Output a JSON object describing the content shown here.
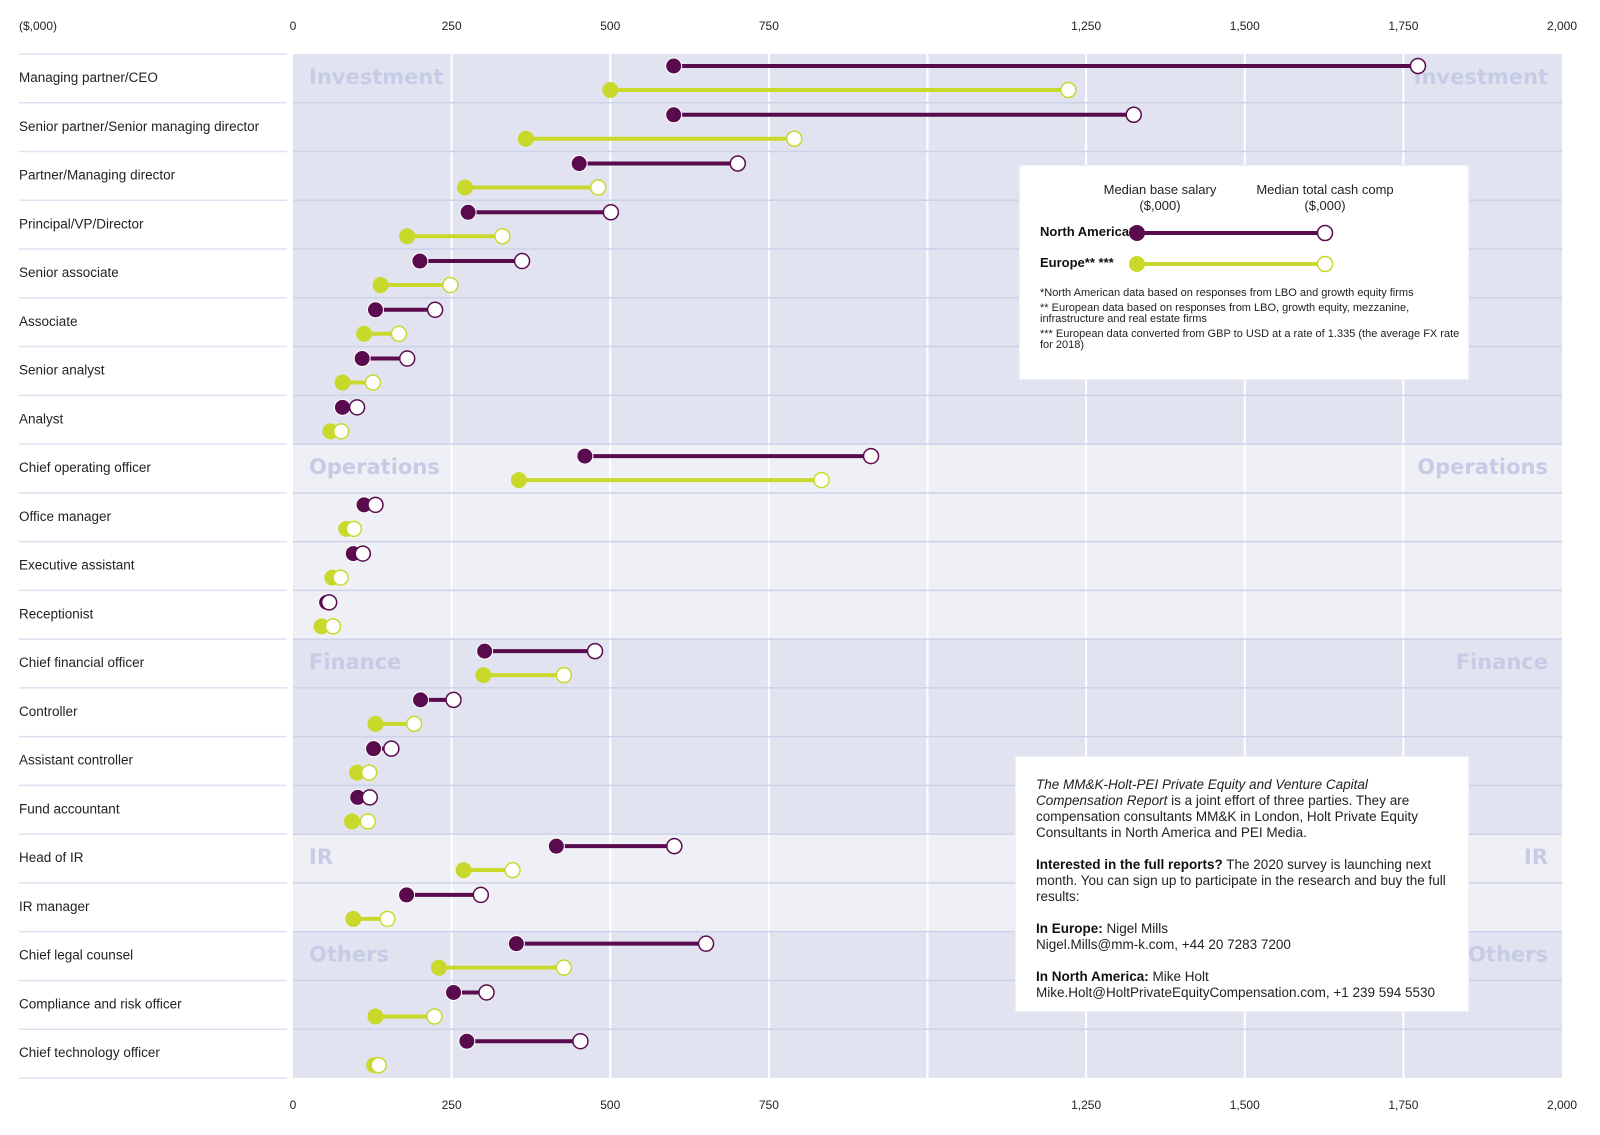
{
  "chart_data": {
    "type": "dumbbell",
    "unit_label": "($,000)",
    "xlim": [
      0,
      2000
    ],
    "x_ticks": [
      {
        "value": 0,
        "label": "0"
      },
      {
        "value": 250,
        "label": "250"
      },
      {
        "value": 500,
        "label": "500"
      },
      {
        "value": 750,
        "label": "750"
      },
      {
        "value": 1000,
        "label": ""
      },
      {
        "value": 1250,
        "label": "1,250"
      },
      {
        "value": 1500,
        "label": "1,500"
      },
      {
        "value": 1750,
        "label": "1,750"
      },
      {
        "value": 2000,
        "label": "2,000"
      }
    ],
    "grid": true,
    "series_names": [
      "North America*",
      "Europe** ***"
    ],
    "colors": {
      "north_america": "#5a0b4d",
      "europe": "#c8d92b",
      "band_dark": "#e1e4f0",
      "band_light": "#eff0f6",
      "row_line": "#cdd2e8",
      "section_label": "#c6cce6"
    },
    "sections": [
      {
        "name": "Investment",
        "rows": [
          {
            "role": "Managing partner/CEO",
            "na_base": 600,
            "na_total": 1773,
            "eu_base": 500,
            "eu_total": 1222
          },
          {
            "role": "Senior partner/Senior managing director",
            "na_base": 600,
            "na_total": 1325,
            "eu_base": 367,
            "eu_total": 790
          },
          {
            "role": "Partner/Managing director",
            "na_base": 451,
            "na_total": 701,
            "eu_base": 271,
            "eu_total": 481
          },
          {
            "role": "Principal/VP/Director",
            "na_base": 276,
            "na_total": 501,
            "eu_base": 180,
            "eu_total": 330
          },
          {
            "role": "Senior associate",
            "na_base": 200,
            "na_total": 361,
            "eu_base": 138,
            "eu_total": 248
          },
          {
            "role": "Associate",
            "na_base": 130,
            "na_total": 224,
            "eu_base": 112,
            "eu_total": 167
          },
          {
            "role": "Senior analyst",
            "na_base": 109,
            "na_total": 180,
            "eu_base": 78,
            "eu_total": 126
          },
          {
            "role": "Analyst",
            "na_base": 78,
            "na_total": 101,
            "eu_base": 59,
            "eu_total": 76
          }
        ]
      },
      {
        "name": "Operations",
        "rows": [
          {
            "role": "Chief operating officer",
            "na_base": 460,
            "na_total": 911,
            "eu_base": 356,
            "eu_total": 833
          },
          {
            "role": "Office manager",
            "na_base": 112,
            "na_total": 130,
            "eu_base": 84,
            "eu_total": 96
          },
          {
            "role": "Executive assistant",
            "na_base": 95,
            "na_total": 110,
            "eu_base": 62,
            "eu_total": 75
          },
          {
            "role": "Receptionist",
            "na_base": 53,
            "na_total": 57,
            "eu_base": 45,
            "eu_total": 63
          }
        ]
      },
      {
        "name": "Finance",
        "rows": [
          {
            "role": "Chief financial officer",
            "na_base": 302,
            "na_total": 476,
            "eu_base": 300,
            "eu_total": 427
          },
          {
            "role": "Controller",
            "na_base": 201,
            "na_total": 253,
            "eu_base": 130,
            "eu_total": 191
          },
          {
            "role": "Assistant controller",
            "na_base": 127,
            "na_total": 155,
            "eu_base": 101,
            "eu_total": 120
          },
          {
            "role": "Fund accountant",
            "na_base": 102,
            "na_total": 121,
            "eu_base": 93,
            "eu_total": 118
          }
        ]
      },
      {
        "name": "IR",
        "rows": [
          {
            "role": "Head of IR",
            "na_base": 415,
            "na_total": 601,
            "eu_base": 269,
            "eu_total": 346
          },
          {
            "role": "IR manager",
            "na_base": 179,
            "na_total": 296,
            "eu_base": 95,
            "eu_total": 149
          }
        ]
      },
      {
        "name": "Others",
        "rows": [
          {
            "role": "Chief legal counsel",
            "na_base": 352,
            "na_total": 651,
            "eu_base": 230,
            "eu_total": 427
          },
          {
            "role": "Compliance and risk officer",
            "na_base": 253,
            "na_total": 305,
            "eu_base": 130,
            "eu_total": 223
          },
          {
            "role": "Chief technology officer",
            "na_base": 274,
            "na_total": 453,
            "eu_base": 128,
            "eu_total": 135
          }
        ]
      }
    ]
  },
  "legend": {
    "base_label_line1": "Median base salary",
    "base_label_line2": "($,000)",
    "total_label_line1": "Median total cash comp",
    "total_label_line2": "($,000)",
    "na_label": "North America*",
    "eu_label": "Europe** ***",
    "notes": [
      "*North American data based on responses from LBO and growth equity firms",
      "** European data based on responses from LBO, growth equity, mezzanine, infrastructure and real estate firms",
      "*** European data converted from GBP to USD at a rate of 1.335 (the average FX rate for 2018)"
    ]
  },
  "info": {
    "intro_italic": "The MM&K-Holt-PEI Private Equity and Venture Capital Compensation Report",
    "intro_rest": " is a joint effort of three parties. They are compensation consultants MM&K in London, Holt Private Equity Consultants in North America and PEI Media.",
    "cta_bold": "Interested in the full reports?",
    "cta_rest": " The 2020 survey is launching next month. You can sign up to participate in the research and buy the full results:",
    "europe_bold": "In Europe:",
    "europe_name": " Nigel Mills",
    "europe_contact": "Nigel.Mills@mm-k.com, +44 20 7283 7200",
    "na_bold": "In North America:",
    "na_name": " Mike Holt",
    "na_contact": "Mike.Holt@HoltPrivateEquityCompensation.com, +1 239 594 5530"
  }
}
